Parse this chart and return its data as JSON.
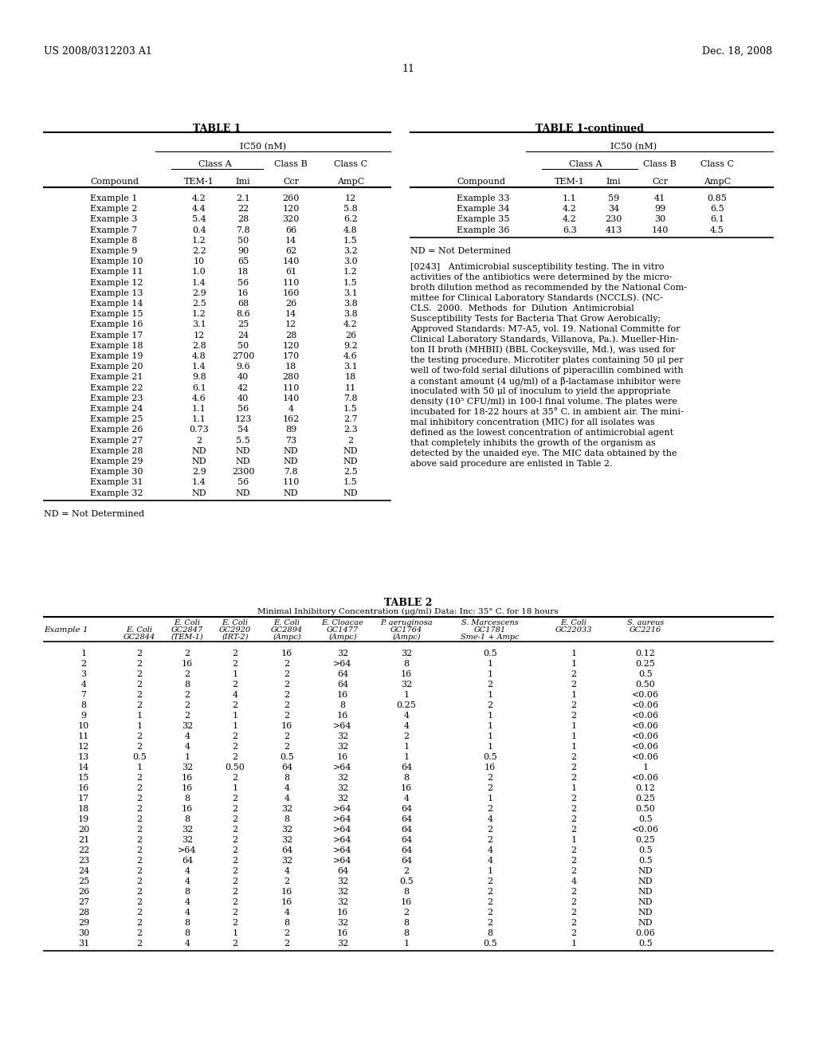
{
  "header_left": "US 2008/0312203 A1",
  "header_right": "Dec. 18, 2008",
  "page_number": "11",
  "table1_title": "TABLE 1",
  "table1_continued_title": "TABLE 1-continued",
  "table1_ic50_header": "IC50 (nM)",
  "table1_classA_header": "Class A",
  "table1_classB_header": "Class B",
  "table1_classC_header": "Class C",
  "table1_compound_header": "Compound",
  "table1_col1": "TEM-1",
  "table1_col2": "Imi",
  "table1_col3": "Ccr",
  "table1_col4": "AmpC",
  "table1_data": [
    [
      "Example 1",
      "4.2",
      "2.1",
      "260",
      "12"
    ],
    [
      "Example 2",
      "4.4",
      "22",
      "120",
      "5.8"
    ],
    [
      "Example 3",
      "5.4",
      "28",
      "320",
      "6.2"
    ],
    [
      "Example 7",
      "0.4",
      "7.8",
      "66",
      "4.8"
    ],
    [
      "Example 8",
      "1.2",
      "50",
      "14",
      "1.5"
    ],
    [
      "Example 9",
      "2.2",
      "90",
      "62",
      "3.2"
    ],
    [
      "Example 10",
      "10",
      "65",
      "140",
      "3.0"
    ],
    [
      "Example 11",
      "1.0",
      "18",
      "61",
      "1.2"
    ],
    [
      "Example 12",
      "1.4",
      "56",
      "110",
      "1.5"
    ],
    [
      "Example 13",
      "2.9",
      "16",
      "160",
      "3.1"
    ],
    [
      "Example 14",
      "2.5",
      "68",
      "26",
      "3.8"
    ],
    [
      "Example 15",
      "1.2",
      "8.6",
      "14",
      "3.8"
    ],
    [
      "Example 16",
      "3.1",
      "25",
      "12",
      "4.2"
    ],
    [
      "Example 17",
      "12",
      "24",
      "28",
      "26"
    ],
    [
      "Example 18",
      "2.8",
      "50",
      "120",
      "9.2"
    ],
    [
      "Example 19",
      "4.8",
      "2700",
      "170",
      "4.6"
    ],
    [
      "Example 20",
      "1.4",
      "9.6",
      "18",
      "3.1"
    ],
    [
      "Example 21",
      "9.8",
      "40",
      "280",
      "18"
    ],
    [
      "Example 22",
      "6.1",
      "42",
      "110",
      "11"
    ],
    [
      "Example 23",
      "4.6",
      "40",
      "140",
      "7.8"
    ],
    [
      "Example 24",
      "1.1",
      "56",
      "4",
      "1.5"
    ],
    [
      "Example 25",
      "1.1",
      "123",
      "162",
      "2.7"
    ],
    [
      "Example 26",
      "0.73",
      "54",
      "89",
      "2.3"
    ],
    [
      "Example 27",
      "2",
      "5.5",
      "73",
      "2"
    ],
    [
      "Example 28",
      "ND",
      "ND",
      "ND",
      "ND"
    ],
    [
      "Example 29",
      "ND",
      "ND",
      "ND",
      "ND"
    ],
    [
      "Example 30",
      "2.9",
      "2300",
      "7.8",
      "2.5"
    ],
    [
      "Example 31",
      "1.4",
      "56",
      "110",
      "1.5"
    ],
    [
      "Example 32",
      "ND",
      "ND",
      "ND",
      "ND"
    ]
  ],
  "table1_cont_data": [
    [
      "Example 33",
      "1.1",
      "59",
      "41",
      "0.85"
    ],
    [
      "Example 34",
      "4.2",
      "34",
      "99",
      "6.5"
    ],
    [
      "Example 35",
      "4.2",
      "230",
      "30",
      "6.1"
    ],
    [
      "Example 36",
      "6.3",
      "413",
      "140",
      "4.5"
    ]
  ],
  "nd_note": "ND = Not Determined",
  "para_lines": [
    "[0243]   Antimicrobial susceptibility testing. The in vitro",
    "activities of the antibiotics were determined by the micro-",
    "broth dilution method as recommended by the National Com-",
    "mittee for Clinical Laboratory Standards (NCCLS). (NC-",
    "CLS.  2000.  Methods  for  Dilution  Antimicrobial",
    "Susceptibility Tests for Bacteria That Grow Aerobically;",
    "Approved Standards: M7-A5, vol. 19. National Committe for",
    "Clinical Laboratory Standards, Villanova, Pa.). Mueller-Hin-",
    "ton II broth (MHBII) (BBL Cockeysville, Md.), was used for",
    "the testing procedure. Microtiter plates containing 50 μl per",
    "well of two-fold serial dilutions of piperacillin combined with",
    "a constant amount (4 ug/ml) of a β-lactamase inhibitor were",
    "inoculated with 50 μl of inoculum to yield the appropriate",
    "density (10⁵ CFU/ml) in 100-l final volume. The plates were",
    "incubated for 18-22 hours at 35° C. in ambient air. The mini-",
    "mal inhibitory concentration (MIC) for all isolates was",
    "defined as the lowest concentration of antimicrobial agent",
    "that completely inhibits the growth of the organism as",
    "detected by the unaided eye. The MIC data obtained by the",
    "above said procedure are enlisted in Table 2."
  ],
  "table2_title": "TABLE 2",
  "table2_subtitle": "Minimal Inhibitory Concentration (μg/ml) Data: Inc: 35° C. for 18 hours",
  "table2_data": [
    [
      "1",
      "2",
      "2",
      "2",
      "16",
      "32",
      "32",
      "0.5",
      "1",
      "0.12"
    ],
    [
      "2",
      "2",
      "16",
      "2",
      "2",
      ">64",
      "8",
      "1",
      "1",
      "0.25"
    ],
    [
      "3",
      "2",
      "2",
      "1",
      "2",
      "64",
      "16",
      "1",
      "2",
      "0.5"
    ],
    [
      "4",
      "2",
      "8",
      "2",
      "2",
      "64",
      "32",
      "2",
      "2",
      "0.50"
    ],
    [
      "7",
      "2",
      "2",
      "4",
      "2",
      "16",
      "1",
      "1",
      "1",
      "<0.06"
    ],
    [
      "8",
      "2",
      "2",
      "2",
      "2",
      "8",
      "0.25",
      "2",
      "2",
      "<0.06"
    ],
    [
      "9",
      "1",
      "2",
      "1",
      "2",
      "16",
      "4",
      "1",
      "2",
      "<0.06"
    ],
    [
      "10",
      "1",
      "32",
      "1",
      "16",
      ">64",
      "4",
      "1",
      "1",
      "<0.06"
    ],
    [
      "11",
      "2",
      "4",
      "2",
      "2",
      "32",
      "2",
      "1",
      "1",
      "<0.06"
    ],
    [
      "12",
      "2",
      "4",
      "2",
      "2",
      "32",
      "1",
      "1",
      "1",
      "<0.06"
    ],
    [
      "13",
      "0.5",
      "1",
      "2",
      "0.5",
      "16",
      "1",
      "0.5",
      "2",
      "<0.06"
    ],
    [
      "14",
      "1",
      "32",
      "0.50",
      "64",
      ">64",
      "64",
      "16",
      "2",
      "1"
    ],
    [
      "15",
      "2",
      "16",
      "2",
      "8",
      "32",
      "8",
      "2",
      "2",
      "<0.06"
    ],
    [
      "16",
      "2",
      "16",
      "1",
      "4",
      "32",
      "16",
      "2",
      "1",
      "0.12"
    ],
    [
      "17",
      "2",
      "8",
      "2",
      "4",
      "32",
      "4",
      "1",
      "2",
      "0.25"
    ],
    [
      "18",
      "2",
      "16",
      "2",
      "32",
      ">64",
      "64",
      "2",
      "2",
      "0.50"
    ],
    [
      "19",
      "2",
      "8",
      "2",
      "8",
      ">64",
      "64",
      "4",
      "2",
      "0.5"
    ],
    [
      "20",
      "2",
      "32",
      "2",
      "32",
      ">64",
      "64",
      "2",
      "2",
      "<0.06"
    ],
    [
      "21",
      "2",
      "32",
      "2",
      "32",
      ">64",
      "64",
      "2",
      "1",
      "0.25"
    ],
    [
      "22",
      "2",
      ">64",
      "2",
      "64",
      ">64",
      "64",
      "4",
      "2",
      "0.5"
    ],
    [
      "23",
      "2",
      "64",
      "2",
      "32",
      ">64",
      "64",
      "4",
      "2",
      "0.5"
    ],
    [
      "24",
      "2",
      "4",
      "2",
      "4",
      "64",
      "2",
      "1",
      "2",
      "ND"
    ],
    [
      "25",
      "2",
      "4",
      "2",
      "2",
      "32",
      "0.5",
      "2",
      "4",
      "ND"
    ],
    [
      "26",
      "2",
      "8",
      "2",
      "16",
      "32",
      "8",
      "2",
      "2",
      "ND"
    ],
    [
      "27",
      "2",
      "4",
      "2",
      "16",
      "32",
      "16",
      "2",
      "2",
      "ND"
    ],
    [
      "28",
      "2",
      "4",
      "2",
      "4",
      "16",
      "2",
      "2",
      "2",
      "ND"
    ],
    [
      "29",
      "2",
      "8",
      "2",
      "8",
      "32",
      "8",
      "2",
      "2",
      "ND"
    ],
    [
      "30",
      "2",
      "8",
      "1",
      "2",
      "16",
      "8",
      "8",
      "2",
      "0.06"
    ],
    [
      "31",
      "2",
      "4",
      "2",
      "2",
      "32",
      "1",
      "0.5",
      "1",
      "0.5"
    ]
  ]
}
